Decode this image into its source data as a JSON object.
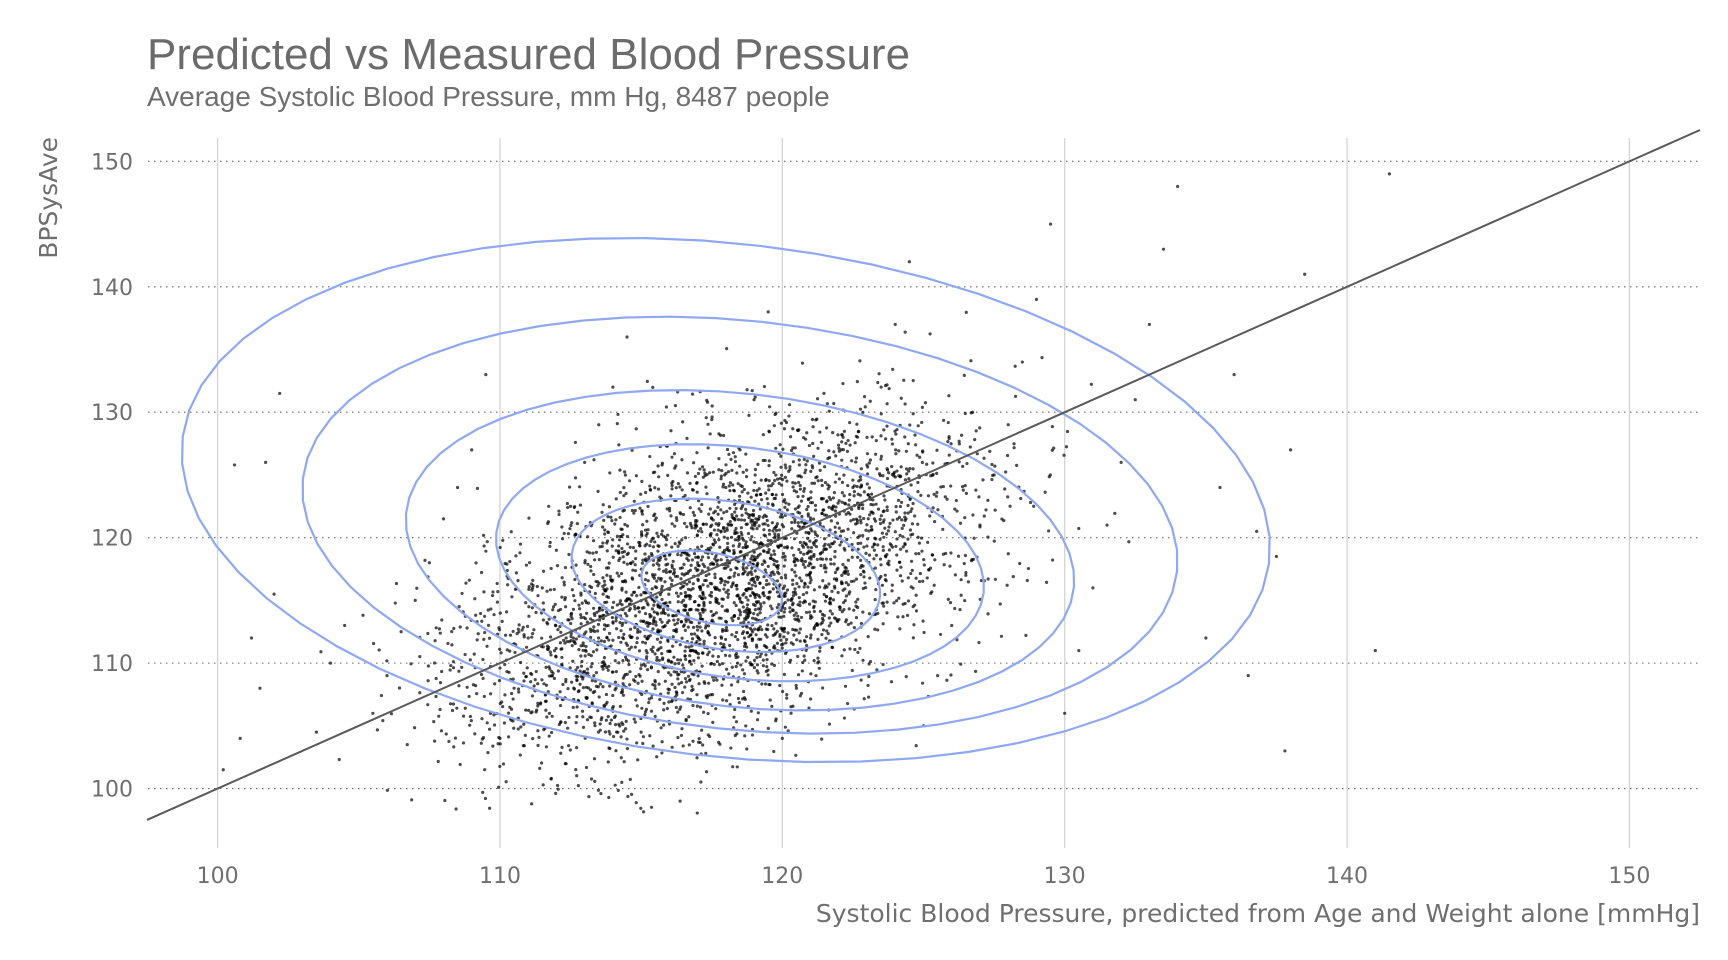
{
  "chart_data": {
    "type": "scatter",
    "title": "Predicted vs Measured Blood Pressure",
    "subtitle": "Average Systolic Blood Pressure, mm Hg, 8487 people",
    "xlabel": "Systolic Blood Pressure, predicted from Age and Weight alone [mmHg]",
    "ylabel": "BPSysAve",
    "xlim": [
      97.5,
      152.5
    ],
    "ylim": [
      95.5,
      152.5
    ],
    "x_ticks": [
      100,
      110,
      120,
      130,
      140,
      150
    ],
    "y_ticks": [
      100,
      110,
      120,
      130,
      140,
      150
    ],
    "x_grid": "solid vertical",
    "y_grid": "dotted horizontal",
    "reference_line": {
      "type": "identity",
      "slope": 1,
      "intercept": 0,
      "color": "#595959"
    },
    "point_color": "#000000",
    "contour_color": "#8fa8f0",
    "points_note": "8487 measured vs predicted pairs; dense scatter concentrated around x 105-130, y 100-140",
    "scatter_points": [
      [
        100.2,
        101.5
      ],
      [
        100.8,
        104.0
      ],
      [
        101.5,
        108.0
      ],
      [
        101.2,
        112.0
      ],
      [
        102.0,
        115.5
      ],
      [
        100.6,
        125.8
      ],
      [
        101.7,
        126.0
      ],
      [
        102.2,
        131.5
      ],
      [
        103.5,
        104.5
      ],
      [
        104.0,
        110.0
      ],
      [
        104.5,
        113.0
      ],
      [
        105.5,
        106.0
      ],
      [
        106.0,
        109.0
      ],
      [
        106.5,
        112.5
      ],
      [
        107.0,
        115.0
      ],
      [
        107.5,
        118.0
      ],
      [
        108.0,
        121.5
      ],
      [
        108.5,
        124.0
      ],
      [
        109.0,
        127.0
      ],
      [
        109.5,
        133.0
      ],
      [
        110.0,
        104.0
      ],
      [
        110.5,
        108.0
      ],
      [
        111.0,
        112.0
      ],
      [
        111.5,
        116.0
      ],
      [
        112.0,
        119.0
      ],
      [
        112.5,
        122.5
      ],
      [
        113.0,
        126.0
      ],
      [
        113.5,
        129.0
      ],
      [
        114.0,
        132.0
      ],
      [
        114.5,
        136.0
      ],
      [
        115.0,
        104.5
      ],
      [
        115.5,
        108.5
      ],
      [
        116.0,
        112.0
      ],
      [
        116.5,
        115.0
      ],
      [
        117.0,
        118.0
      ],
      [
        117.5,
        121.0
      ],
      [
        118.0,
        124.0
      ],
      [
        118.5,
        127.0
      ],
      [
        119.0,
        131.0
      ],
      [
        119.5,
        138.0
      ],
      [
        120.0,
        104.0
      ],
      [
        120.5,
        108.0
      ],
      [
        121.0,
        112.0
      ],
      [
        121.5,
        116.0
      ],
      [
        122.0,
        120.0
      ],
      [
        122.5,
        124.0
      ],
      [
        123.0,
        128.0
      ],
      [
        123.5,
        132.0
      ],
      [
        124.0,
        137.0
      ],
      [
        124.5,
        142.0
      ],
      [
        125.0,
        105.0
      ],
      [
        125.5,
        109.0
      ],
      [
        126.0,
        113.0
      ],
      [
        126.5,
        117.0
      ],
      [
        127.0,
        121.0
      ],
      [
        127.5,
        125.0
      ],
      [
        128.0,
        129.0
      ],
      [
        128.5,
        134.0
      ],
      [
        129.0,
        139.0
      ],
      [
        129.5,
        145.0
      ],
      [
        130.0,
        106.0
      ],
      [
        130.5,
        111.0
      ],
      [
        131.0,
        116.0
      ],
      [
        131.5,
        121.0
      ],
      [
        132.0,
        126.0
      ],
      [
        132.5,
        131.0
      ],
      [
        133.0,
        137.0
      ],
      [
        133.5,
        143.0
      ],
      [
        134.0,
        148.0
      ],
      [
        135.0,
        112.0
      ],
      [
        135.5,
        124.0
      ],
      [
        136.0,
        133.0
      ],
      [
        137.5,
        118.5
      ],
      [
        137.8,
        103.0
      ],
      [
        138.0,
        127.0
      ],
      [
        138.5,
        141.0
      ],
      [
        141.0,
        111.0
      ],
      [
        141.5,
        149.0
      ],
      [
        136.5,
        109.0
      ],
      [
        136.8,
        120.5
      ]
    ],
    "density_contours": "blue 2D kernel density contour levels around the point cloud"
  }
}
